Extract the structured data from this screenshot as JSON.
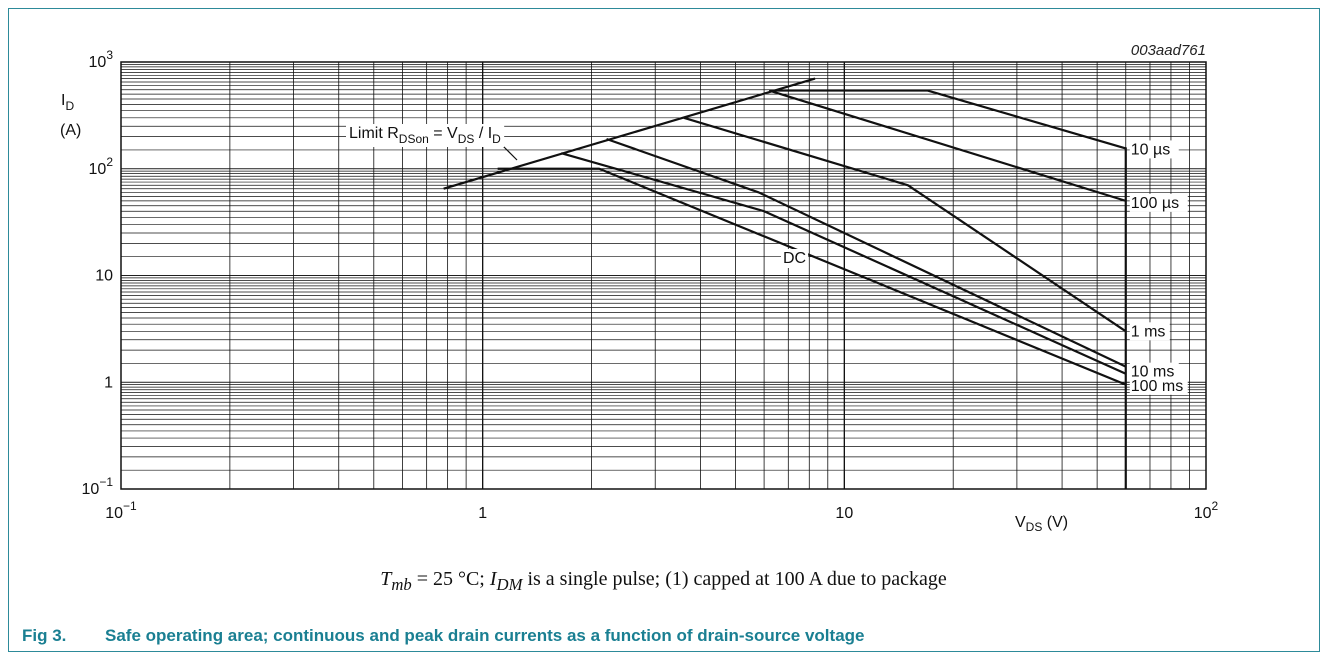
{
  "chart_data": {
    "type": "line",
    "x_scale": "log",
    "y_scale": "log",
    "xlim": [
      0.1,
      100
    ],
    "ylim": [
      0.1,
      1000
    ],
    "grid": true,
    "figure_id": "003aad761",
    "xlabel_main": "V",
    "xlabel_sub": "DS",
    "xlabel_unit": " (V)",
    "ylabel_main": "I",
    "ylabel_sub": "D",
    "ylabel_unit": "(A)",
    "x_ticks": [
      {
        "base": "10",
        "exp": "−1"
      },
      {
        "base": "1",
        "exp": ""
      },
      {
        "base": "10",
        "exp": ""
      },
      {
        "base": "10",
        "exp": "2"
      }
    ],
    "y_ticks": [
      {
        "base": "10",
        "exp": "−1"
      },
      {
        "base": "1",
        "exp": ""
      },
      {
        "base": "10",
        "exp": ""
      },
      {
        "base": "10",
        "exp": "2"
      },
      {
        "base": "10",
        "exp": "3"
      }
    ],
    "limit_label": {
      "t1": "Limit R",
      "s1": "DSon",
      "t2": " = V",
      "s2": "DS",
      "t3": " / I",
      "s3": "D"
    },
    "limit_line": {
      "x": [
        0.78,
        8.3
      ],
      "y": [
        65,
        700
      ]
    },
    "vertical_limit_v": 60,
    "series": [
      {
        "name": "10 µs",
        "x": [
          6.2,
          17,
          60
        ],
        "y": [
          540,
          540,
          155
        ]
      },
      {
        "name": "100 µs",
        "x": [
          6.2,
          60
        ],
        "y": [
          540,
          50
        ]
      },
      {
        "name": "1 ms",
        "x": [
          3.6,
          15,
          60
        ],
        "y": [
          300,
          70,
          3
        ]
      },
      {
        "name": "10 ms",
        "x": [
          2.2,
          5.8,
          60
        ],
        "y": [
          190,
          60,
          1.4
        ]
      },
      {
        "name": "100 ms",
        "x": [
          1.65,
          6,
          60
        ],
        "y": [
          140,
          40,
          1.2
        ]
      },
      {
        "name": "DC",
        "x": [
          1.1,
          2.1,
          60
        ],
        "y": [
          100,
          100,
          0.95
        ]
      }
    ],
    "dc_label": "DC"
  },
  "note": {
    "t1": "T",
    "s1": "mb",
    "t2": " = 25 °C; ",
    "t3": "I",
    "s3": "DM",
    "t4": " is a single pulse; (1) capped at 100 A due to package"
  },
  "caption": {
    "number": "Fig 3.",
    "title": "Safe operating area; continuous and peak drain currents as a function of drain-source voltage"
  }
}
